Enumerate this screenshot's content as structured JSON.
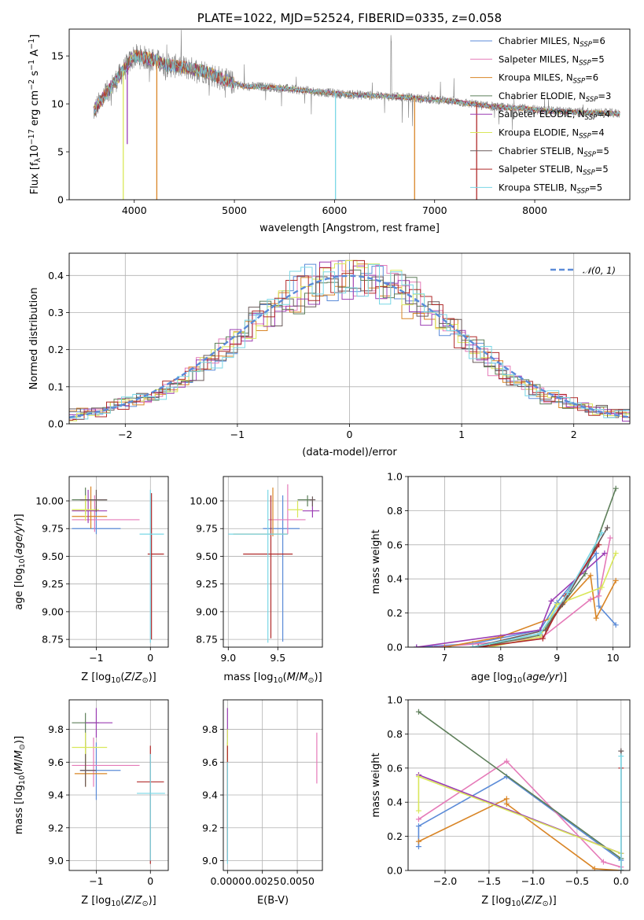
{
  "colors": [
    "#5b8bd8",
    "#e57ab8",
    "#d98526",
    "#5e7f5a",
    "#9b3db3",
    "#d9e75a",
    "#6a5a5a",
    "#b02a2a",
    "#79d7e6"
  ],
  "chart_data": [
    {
      "id": "spectrum",
      "type": "line",
      "title": "PLATE=1022, MJD=52524, FIBERID=0335, z=0.058",
      "xlabel": "wavelength [Angstrom, rest frame]",
      "ylabel": "Flux [fλ10⁻¹⁷ erg cm⁻² s⁻¹ A⁻¹]",
      "xlim": [
        3350,
        8950
      ],
      "ylim": [
        0,
        17.8
      ],
      "xticks": [
        4000,
        5000,
        6000,
        7000,
        8000
      ],
      "yticks": [
        0,
        5,
        10,
        15
      ],
      "data_color": "#808080",
      "continuum": {
        "x": [
          3600,
          3700,
          3800,
          3900,
          4000,
          4100,
          4200,
          4300,
          4500,
          4700,
          4900,
          5100,
          5300,
          5500,
          5700,
          5900,
          6100,
          6300,
          6500,
          6700,
          6900,
          7100,
          7300,
          7500,
          7700,
          7900,
          8100,
          8300,
          8500,
          8800
        ],
        "y": [
          9.3,
          10.8,
          12.2,
          13.6,
          15.0,
          14.8,
          14.6,
          14.1,
          13.8,
          13.4,
          12.5,
          11.8,
          11.8,
          11.6,
          11.4,
          11.2,
          11.0,
          10.9,
          10.8,
          10.7,
          10.5,
          10.4,
          10.1,
          9.8,
          9.6,
          9.5,
          9.3,
          9.2,
          9.1,
          9.0
        ]
      },
      "legend": {
        "placement": "upper-right",
        "entries": [
          {
            "label": "Chabrier MILES, N",
            "sub": "SSP",
            "tail": "=6"
          },
          {
            "label": "Salpeter MILES, N",
            "sub": "SSP",
            "tail": "=5"
          },
          {
            "label": "Kroupa MILES, N",
            "sub": "SSP",
            "tail": "=6"
          },
          {
            "label": "Chabrier ELODIE, N",
            "sub": "SSP",
            "tail": "=3"
          },
          {
            "label": "Salpeter ELODIE, N",
            "sub": "SSP",
            "tail": "=4"
          },
          {
            "label": "Kroupa ELODIE, N",
            "sub": "SSP",
            "tail": "=4"
          },
          {
            "label": "Chabrier STELIB, N",
            "sub": "SSP",
            "tail": "=5"
          },
          {
            "label": "Salpeter STELIB, N",
            "sub": "SSP",
            "tail": "=5"
          },
          {
            "label": "Kroupa STELIB, N",
            "sub": "SSP",
            "tail": "=5"
          }
        ]
      },
      "drops": [
        {
          "x": 3890,
          "y": 0,
          "series": 5
        },
        {
          "x": 3930,
          "y": 5.8,
          "series": 4
        },
        {
          "x": 4225,
          "y": 0,
          "series": 2
        },
        {
          "x": 6010,
          "y": 0,
          "series": 8
        },
        {
          "x": 6800,
          "y": 0,
          "series": 2
        },
        {
          "x": 7420,
          "y": 0,
          "series": 7
        }
      ]
    },
    {
      "id": "residuals",
      "type": "line",
      "xlabel": "(data-model)/error",
      "ylabel": "Normed distribution",
      "xlim": [
        -2.5,
        2.5
      ],
      "ylim": [
        0,
        0.46
      ],
      "xticks": [
        -2,
        -1,
        0,
        1,
        2
      ],
      "yticks": [
        0.0,
        0.1,
        0.2,
        0.3,
        0.4
      ],
      "grid": true,
      "legend": {
        "placement": "upper-right",
        "label": "𝒩(0, 1)"
      },
      "normal_color": "#5b8bd8",
      "bin_width": 0.1
    },
    {
      "id": "age-vs-Z",
      "type": "scatter",
      "xlabel": "Z [log₁₀(Z/Z⊙)]",
      "ylabel": "age  [log₁₀(age/yr)]",
      "xlim": [
        -1.5,
        0.33
      ],
      "ylim": [
        8.68,
        10.22
      ],
      "xticks": [
        -1,
        0
      ],
      "yticks": [
        8.75,
        9.0,
        9.25,
        9.5,
        9.75,
        10.0
      ],
      "grid": true,
      "points": [
        {
          "x": -1.0,
          "y": 9.75,
          "ex": [
            -1.45,
            -0.55
          ],
          "ey": [
            9.7,
            9.95
          ],
          "series": 0
        },
        {
          "x": -1.03,
          "y": 9.83,
          "ex": [
            -1.45,
            -0.2
          ],
          "ey": [
            9.72,
            10.05
          ],
          "series": 1
        },
        {
          "x": -1.1,
          "y": 9.86,
          "ex": [
            -1.45,
            -0.8
          ],
          "ey": [
            9.75,
            10.13
          ],
          "series": 2
        },
        {
          "x": -1.2,
          "y": 10.01,
          "ex": [
            -1.45,
            -0.8
          ],
          "ey": [
            9.88,
            10.12
          ],
          "series": 3
        },
        {
          "x": -1.15,
          "y": 9.91,
          "ex": [
            -1.45,
            -0.8
          ],
          "ey": [
            9.8,
            10.1
          ],
          "series": 4
        },
        {
          "x": -1.2,
          "y": 9.92,
          "ex": [
            -1.45,
            -0.95
          ],
          "ey": [
            9.82,
            10.05
          ],
          "series": 5
        },
        {
          "x": -1.0,
          "y": 10.01,
          "ex": [
            -1.3,
            -0.8
          ],
          "ey": [
            9.9,
            10.1
          ],
          "series": 6
        },
        {
          "x": 0.02,
          "y": 9.52,
          "ex": [
            -0.05,
            0.25
          ],
          "ey": [
            8.75,
            10.07
          ],
          "series": 7
        },
        {
          "x": 0.0,
          "y": 9.7,
          "ex": [
            -0.2,
            0.25
          ],
          "ey": [
            8.72,
            10.1
          ],
          "series": 8
        }
      ]
    },
    {
      "id": "age-vs-mass",
      "type": "scatter",
      "xlabel": "mass [log₁₀(M/M⊙)]",
      "ylabel": "",
      "xlim": [
        8.95,
        9.95
      ],
      "ylim": [
        8.68,
        10.22
      ],
      "xticks": [
        9.0,
        9.5
      ],
      "yticks": [
        8.75,
        9.0,
        9.25,
        9.5,
        9.75,
        10.0
      ],
      "grid": true,
      "points": [
        {
          "x": 9.55,
          "y": 9.75,
          "ex": [
            9.35,
            9.72
          ],
          "ey": [
            8.73,
            10.05
          ],
          "series": 0
        },
        {
          "x": 9.6,
          "y": 9.83,
          "ex": [
            9.4,
            9.78
          ],
          "ey": [
            9.7,
            10.15
          ],
          "series": 1
        },
        {
          "x": 9.45,
          "y": 9.7,
          "ex": [
            9.05,
            9.6
          ],
          "ey": [
            9.68,
            10.12
          ],
          "series": 2
        },
        {
          "x": 9.8,
          "y": 10.01,
          "ex": [
            9.7,
            9.85
          ],
          "ey": [
            9.95,
            10.05
          ],
          "series": 3
        },
        {
          "x": 9.85,
          "y": 9.91,
          "ex": [
            9.75,
            9.92
          ],
          "ey": [
            9.85,
            10.0
          ],
          "series": 4
        },
        {
          "x": 9.7,
          "y": 9.92,
          "ex": [
            9.6,
            9.75
          ],
          "ey": [
            9.85,
            10.0
          ],
          "series": 5
        },
        {
          "x": 9.85,
          "y": 10.01,
          "ex": [
            9.82,
            9.88
          ],
          "ey": [
            9.95,
            10.04
          ],
          "series": 6
        },
        {
          "x": 9.43,
          "y": 9.52,
          "ex": [
            9.15,
            9.65
          ],
          "ey": [
            8.76,
            10.05
          ],
          "series": 7
        },
        {
          "x": 9.4,
          "y": 9.7,
          "ex": [
            9.0,
            9.6
          ],
          "ey": [
            8.72,
            10.1
          ],
          "series": 8
        }
      ]
    },
    {
      "id": "weight-vs-age",
      "type": "line",
      "xlabel": "age  [log₁₀(age/yr)]",
      "ylabel": "mass weight",
      "xlim": [
        6.35,
        10.3
      ],
      "ylim": [
        0,
        1.0
      ],
      "xticks": [
        7,
        8,
        9,
        10
      ],
      "yticks": [
        0.0,
        0.2,
        0.4,
        0.6,
        0.8,
        1.0
      ],
      "grid": true,
      "series": [
        {
          "x": [
            6.5,
            7.5,
            8.7,
            9.0,
            9.7,
            9.75,
            10.05
          ],
          "y": [
            0.0,
            0.02,
            0.1,
            0.26,
            0.55,
            0.24,
            0.13
          ],
          "series": 0
        },
        {
          "x": [
            6.8,
            8.0,
            8.75,
            9.6,
            9.75,
            9.95
          ],
          "y": [
            0.0,
            0.03,
            0.06,
            0.28,
            0.3,
            0.64
          ],
          "series": 1
        },
        {
          "x": [
            7.0,
            8.0,
            8.9,
            9.6,
            9.7,
            10.05
          ],
          "y": [
            0.0,
            0.06,
            0.17,
            0.42,
            0.17,
            0.39
          ],
          "series": 2
        },
        {
          "x": [
            7.6,
            8.7,
            9.5,
            10.05
          ],
          "y": [
            0.0,
            0.07,
            0.43,
            0.93
          ],
          "series": 3
        },
        {
          "x": [
            6.5,
            8.7,
            8.9,
            9.85
          ],
          "y": [
            0.0,
            0.1,
            0.27,
            0.55
          ],
          "series": 4
        },
        {
          "x": [
            7.8,
            8.7,
            9.0,
            9.8,
            10.05
          ],
          "y": [
            0.0,
            0.06,
            0.25,
            0.35,
            0.55
          ],
          "series": 5
        },
        {
          "x": [
            7.5,
            8.8,
            9.1,
            9.9
          ],
          "y": [
            0.0,
            0.1,
            0.25,
            0.7
          ],
          "series": 6
        },
        {
          "x": [
            7.6,
            8.75,
            9.15,
            9.75
          ],
          "y": [
            0.0,
            0.05,
            0.3,
            0.6
          ],
          "series": 7
        },
        {
          "x": [
            7.5,
            8.7,
            9.2,
            9.8
          ],
          "y": [
            0.0,
            0.08,
            0.32,
            0.67
          ],
          "series": 8
        }
      ]
    },
    {
      "id": "mass-vs-Z",
      "type": "scatter",
      "xlabel": "Z [log₁₀(Z/Z⊙)]",
      "ylabel": "mass [log₁₀(M/M⊙)]",
      "xlim": [
        -1.5,
        0.33
      ],
      "ylim": [
        8.94,
        9.98
      ],
      "xticks": [
        -1,
        0
      ],
      "yticks": [
        9.0,
        9.2,
        9.4,
        9.6,
        9.8
      ],
      "grid": true,
      "points": [
        {
          "x": -1.0,
          "y": 9.55,
          "ex": [
            -1.3,
            -0.55
          ],
          "ey": [
            9.37,
            9.72
          ],
          "series": 0
        },
        {
          "x": -1.05,
          "y": 9.58,
          "ex": [
            -1.45,
            -0.2
          ],
          "ey": [
            9.45,
            9.75
          ],
          "series": 1
        },
        {
          "x": -1.2,
          "y": 9.53,
          "ex": [
            -1.4,
            -0.8
          ],
          "ey": [
            9.45,
            9.72
          ],
          "series": 2
        },
        {
          "x": -1.2,
          "y": 9.84,
          "ex": [
            -1.45,
            -0.95
          ],
          "ey": [
            9.6,
            9.9
          ],
          "series": 3
        },
        {
          "x": -1.0,
          "y": 9.84,
          "ex": [
            -1.2,
            -0.7
          ],
          "ey": [
            9.75,
            9.93
          ],
          "series": 4
        },
        {
          "x": -1.2,
          "y": 9.69,
          "ex": [
            -1.45,
            -0.8
          ],
          "ey": [
            9.6,
            9.78
          ],
          "series": 5
        },
        {
          "x": -1.2,
          "y": 9.55,
          "ex": [
            -1.3,
            -1.0
          ],
          "ey": [
            9.45,
            9.65
          ],
          "series": 6
        },
        {
          "x": 0.0,
          "y": 9.48,
          "ex": [
            -0.25,
            0.25
          ],
          "ey": [
            8.98,
            9.7
          ],
          "series": 7
        },
        {
          "x": 0.0,
          "y": 9.41,
          "ex": [
            -0.25,
            0.27
          ],
          "ey": [
            9.0,
            9.65
          ],
          "series": 8
        }
      ]
    },
    {
      "id": "mass-vs-EBV",
      "type": "scatter",
      "xlabel": "E(B-V)",
      "ylabel": "",
      "xlim": [
        -0.0003,
        0.0068
      ],
      "ylim": [
        8.94,
        9.98
      ],
      "xticks": [
        0.0,
        0.0025,
        0.005
      ],
      "xtick_labels": [
        "0.0000",
        "0.0025",
        "0.0050"
      ],
      "yticks": [
        9.0,
        9.2,
        9.4,
        9.6,
        9.8
      ],
      "grid": true,
      "points": [
        {
          "x": 0.0,
          "y": 9.55,
          "ey": [
            9.0,
            9.75
          ],
          "series": 0
        },
        {
          "x": 0.0064,
          "y": 9.6,
          "ey": [
            9.47,
            9.78
          ],
          "series": 1
        },
        {
          "x": 0.0,
          "y": 9.5,
          "ey": [
            9.05,
            9.72
          ],
          "series": 2
        },
        {
          "x": 0.0,
          "y": 9.84,
          "ey": [
            9.75,
            9.93
          ],
          "series": 4
        },
        {
          "x": 0.0,
          "y": 9.7,
          "ey": [
            9.6,
            9.8
          ],
          "series": 5
        },
        {
          "x": 0.0,
          "y": 9.48,
          "ey": [
            9.0,
            9.7
          ],
          "series": 7
        },
        {
          "x": 0.0,
          "y": 9.41,
          "ey": [
            8.98,
            9.6
          ],
          "series": 8
        }
      ]
    },
    {
      "id": "weight-vs-Z",
      "type": "line",
      "xlabel": "Z [log₁₀(Z/Z⊙)]",
      "ylabel": "mass weight",
      "xlim": [
        -2.42,
        0.1
      ],
      "ylim": [
        0,
        1.0
      ],
      "xticks": [
        -2.0,
        -1.5,
        -1.0,
        -0.5,
        0.0
      ],
      "yticks": [
        0.0,
        0.2,
        0.4,
        0.6,
        0.8,
        1.0
      ],
      "grid": true,
      "series": [
        {
          "x": [
            -2.3,
            -2.3,
            -1.3,
            0.0,
            0.0
          ],
          "y": [
            0.14,
            0.26,
            0.55,
            0.06,
            0.0
          ],
          "series": 0
        },
        {
          "x": [
            -2.3,
            -1.3,
            -0.2,
            0.0
          ],
          "y": [
            0.3,
            0.64,
            0.05,
            0.02
          ],
          "series": 1
        },
        {
          "x": [
            -2.3,
            -1.3,
            -1.3,
            -0.3,
            0.0
          ],
          "y": [
            0.17,
            0.42,
            0.39,
            0.01,
            0.0
          ],
          "series": 2
        },
        {
          "x": [
            -2.3,
            0.0
          ],
          "y": [
            0.93,
            0.07
          ],
          "series": 3
        },
        {
          "x": [
            -2.3,
            0.0
          ],
          "y": [
            0.56,
            0.1
          ],
          "series": 4
        },
        {
          "x": [
            -2.3,
            -2.3,
            0.0
          ],
          "y": [
            0.35,
            0.55,
            0.1
          ],
          "series": 5
        },
        {
          "x": [
            0.0,
            0.0
          ],
          "y": [
            0.0,
            0.7
          ],
          "series": 6
        },
        {
          "x": [
            0.0,
            0.0
          ],
          "y": [
            0.0,
            0.6
          ],
          "series": 7
        },
        {
          "x": [
            0.0,
            0.0
          ],
          "y": [
            0.0,
            0.67
          ],
          "series": 8
        }
      ]
    }
  ]
}
